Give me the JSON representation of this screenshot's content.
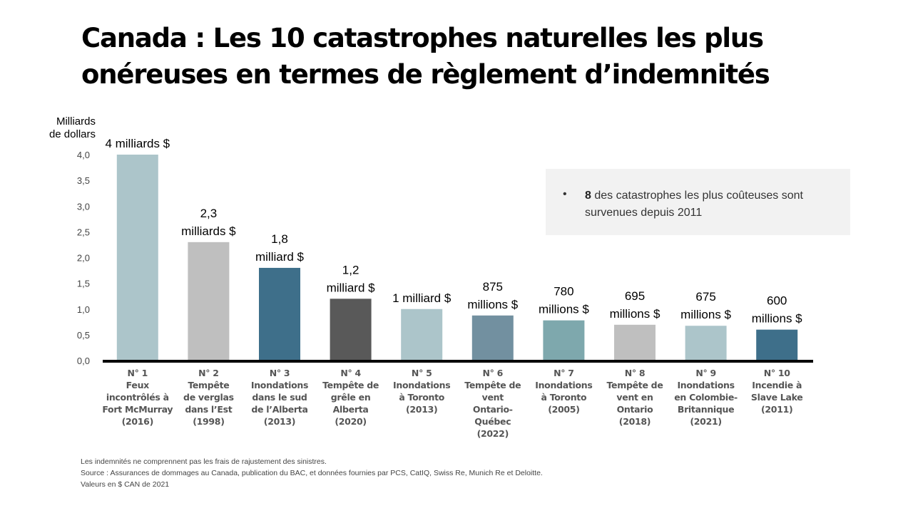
{
  "title": "Canada : Les 10 catastrophes naturelles les plus onéreuses en termes de règlement d’indemnités",
  "y_unit_label": [
    "Milliards",
    "de dollars"
  ],
  "callout": {
    "bullet": "•",
    "bold": "8",
    "text": " des catastrophes les plus coûteuses sont survenues depuis 2011"
  },
  "footnotes": [
    "Les indemnités ne comprennent  pas les frais de rajustement des sinistres.",
    "Source : Assurances de dommages au Canada, publication du BAC, et  données fournies par PCS, CatIQ, Swiss Re,  Munich Re et  Deloitte.",
    "Valeurs en $ CAN de 2021"
  ],
  "chart_data": {
    "type": "bar",
    "title": "Canada : Les 10 catastrophes naturelles les plus onéreuses en termes de règlement d’indemnités",
    "xlabel": "",
    "ylabel": "Milliards de dollars",
    "ylim": [
      0,
      4.0
    ],
    "yticks": [
      0,
      0.5,
      1.0,
      1.5,
      2.0,
      2.5,
      3.0,
      3.5,
      4.0
    ],
    "ytick_labels": [
      "0,0",
      "0,5",
      "1,0",
      "1,5",
      "2,0",
      "2,5",
      "3,0",
      "3,5",
      "4,0"
    ],
    "grid": false,
    "legend": "none",
    "categories": [
      [
        "N° 1",
        "Feux",
        "incontrôlés à",
        "Fort McMurray",
        "(2016)"
      ],
      [
        "N° 2",
        "Tempête",
        "de verglas",
        "dans l’Est",
        "(1998)"
      ],
      [
        "N° 3",
        "Inondations",
        "dans le sud",
        "de l’Alberta",
        "(2013)"
      ],
      [
        "N° 4",
        "Tempête de",
        "grêle en",
        "Alberta",
        "(2020)"
      ],
      [
        "N° 5",
        "Inondations",
        "à Toronto",
        "(2013)"
      ],
      [
        "N° 6",
        "Tempête de",
        "vent",
        "Ontario-",
        "Québec",
        "(2022)"
      ],
      [
        "N° 7",
        "Inondations",
        "à Toronto",
        "(2005)"
      ],
      [
        "N° 8",
        "Tempête de",
        "vent en",
        "Ontario",
        "(2018)"
      ],
      [
        "N° 9",
        "Inondations",
        "en Colombie-",
        "Britannique",
        "(2021)"
      ],
      [
        "N° 10",
        "Incendie à",
        "Slave Lake",
        "(2011)"
      ]
    ],
    "values": [
      4.0,
      2.3,
      1.8,
      1.2,
      1.0,
      0.875,
      0.78,
      0.695,
      0.675,
      0.6
    ],
    "data_labels": [
      [
        "4 milliards $"
      ],
      [
        "2,3",
        "milliards $"
      ],
      [
        "1,8",
        "milliard $"
      ],
      [
        "1,2",
        "milliard $"
      ],
      [
        "1 milliard $"
      ],
      [
        "875",
        "millions $"
      ],
      [
        "780",
        "millions $"
      ],
      [
        "695",
        "millions $"
      ],
      [
        "675",
        "millions $"
      ],
      [
        "600",
        "millions $"
      ]
    ],
    "colors": [
      "#acc5ca",
      "#bfbfbf",
      "#3e6f8a",
      "#595959",
      "#acc5ca",
      "#7290a0",
      "#7ea8ad",
      "#bfbfbf",
      "#acc5ca",
      "#3e6f8a"
    ]
  }
}
